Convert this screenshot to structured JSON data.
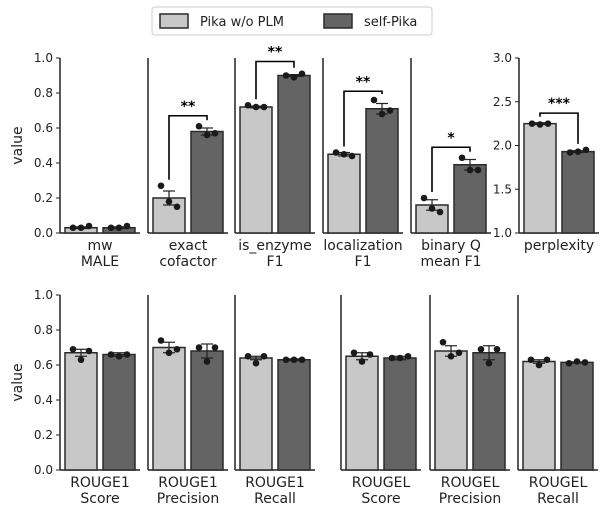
{
  "chart_data": {
    "type": "bar",
    "legend": {
      "placement": "top-center",
      "items": [
        {
          "name": "Pika w/o PLM",
          "color": "#c8c8c8"
        },
        {
          "name": "self-Pika",
          "color": "#646464"
        }
      ]
    },
    "colors": {
      "base": "#c8c8c8",
      "self": "#646464",
      "edge": "#2a2a2a",
      "point": "#1a1a1a"
    },
    "ylabel": "value",
    "top_panels": [
      {
        "label": [
          "mw",
          "MALE"
        ],
        "ylim": [
          0,
          1.0
        ],
        "yticks": [
          "0.0",
          "0.2",
          "0.4",
          "0.6",
          "0.8",
          "1.0"
        ],
        "ytick_values": [
          0,
          0.2,
          0.4,
          0.6,
          0.8,
          1.0
        ],
        "show_ylabel": true,
        "values": [
          0.03,
          0.03
        ],
        "errors": [
          0.005,
          0.005
        ],
        "points": [
          [
            0.03,
            0.03,
            0.04
          ],
          [
            0.03,
            0.03,
            0.04
          ]
        ],
        "sig": ""
      },
      {
        "label": [
          "exact",
          "cofactor"
        ],
        "ylim": [
          0,
          1.0
        ],
        "yticks": [],
        "ytick_values": [],
        "values": [
          0.2,
          0.58
        ],
        "errors": [
          0.04,
          0.02
        ],
        "points": [
          [
            0.27,
            0.18,
            0.15
          ],
          [
            0.61,
            0.56,
            0.57
          ]
        ],
        "sig": "**",
        "sig_y": 0.67
      },
      {
        "label": [
          "is_enzyme",
          "F1"
        ],
        "ylim": [
          0,
          1.0
        ],
        "yticks": [],
        "ytick_values": [],
        "values": [
          0.72,
          0.9
        ],
        "errors": [
          0.005,
          0.005
        ],
        "points": [
          [
            0.73,
            0.72,
            0.72
          ],
          [
            0.9,
            0.89,
            0.91
          ]
        ],
        "sig": "**",
        "sig_y": 0.98
      },
      {
        "label": [
          "localization",
          "F1"
        ],
        "ylim": [
          0,
          1.0
        ],
        "yticks": [],
        "ytick_values": [],
        "values": [
          0.45,
          0.71
        ],
        "errors": [
          0.01,
          0.03
        ],
        "points": [
          [
            0.46,
            0.45,
            0.44
          ],
          [
            0.76,
            0.68,
            0.7
          ]
        ],
        "sig": "**",
        "sig_y": 0.81
      },
      {
        "label": [
          "binary Q",
          "mean F1"
        ],
        "ylim": [
          0,
          1.0
        ],
        "yticks": [],
        "ytick_values": [],
        "values": [
          0.16,
          0.39
        ],
        "errors": [
          0.03,
          0.03
        ],
        "points": [
          [
            0.2,
            0.14,
            0.12
          ],
          [
            0.43,
            0.36,
            0.36
          ]
        ],
        "sig": "*",
        "sig_y": 0.49
      },
      {
        "label": [
          "perplexity",
          ""
        ],
        "ylim": [
          1.0,
          3.0
        ],
        "yticks": [
          "1.0",
          "1.5",
          "2.0",
          "2.5",
          "3.0"
        ],
        "ytick_values": [
          1.0,
          1.5,
          2.0,
          2.5,
          3.0
        ],
        "values": [
          2.25,
          1.93
        ],
        "errors": [
          0.01,
          0.01
        ],
        "points": [
          [
            2.25,
            2.24,
            2.25
          ],
          [
            1.92,
            1.93,
            1.95
          ]
        ],
        "sig": "***",
        "sig_y": 2.37
      }
    ],
    "bottom_panels": [
      {
        "label": [
          "ROUGE1",
          "Score"
        ],
        "ylim": [
          0,
          1.0
        ],
        "yticks": [
          "0.0",
          "0.2",
          "0.4",
          "0.6",
          "0.8",
          "1.0"
        ],
        "ytick_values": [
          0,
          0.2,
          0.4,
          0.6,
          0.8,
          1.0
        ],
        "show_ylabel": true,
        "values": [
          0.67,
          0.66
        ],
        "errors": [
          0.02,
          0.01
        ],
        "points": [
          [
            0.69,
            0.63,
            0.68
          ],
          [
            0.66,
            0.65,
            0.66
          ]
        ]
      },
      {
        "label": [
          "ROUGE1",
          "Precision"
        ],
        "ylim": [
          0,
          1.0
        ],
        "yticks": [],
        "ytick_values": [],
        "values": [
          0.7,
          0.68
        ],
        "errors": [
          0.03,
          0.04
        ],
        "points": [
          [
            0.74,
            0.67,
            0.69
          ],
          [
            0.7,
            0.62,
            0.7
          ]
        ]
      },
      {
        "label": [
          "ROUGE1",
          "Recall"
        ],
        "ylim": [
          0,
          1.0
        ],
        "yticks": [],
        "ytick_values": [],
        "values": [
          0.64,
          0.63
        ],
        "errors": [
          0.01,
          0.005
        ],
        "points": [
          [
            0.65,
            0.61,
            0.65
          ],
          [
            0.63,
            0.63,
            0.63
          ]
        ]
      },
      {
        "label": [
          "ROUGEL",
          "Score"
        ],
        "ylim": [
          0,
          1.0
        ],
        "yticks": [],
        "ytick_values": [],
        "values": [
          0.65,
          0.64
        ],
        "errors": [
          0.02,
          0.01
        ],
        "points": [
          [
            0.67,
            0.62,
            0.66
          ],
          [
            0.64,
            0.64,
            0.65
          ]
        ]
      },
      {
        "label": [
          "ROUGEL",
          "Precision"
        ],
        "ylim": [
          0,
          1.0
        ],
        "yticks": [],
        "ytick_values": [],
        "values": [
          0.68,
          0.67
        ],
        "errors": [
          0.03,
          0.04
        ],
        "points": [
          [
            0.73,
            0.65,
            0.67
          ],
          [
            0.69,
            0.61,
            0.69
          ]
        ]
      },
      {
        "label": [
          "ROUGEL",
          "Recall"
        ],
        "ylim": [
          0,
          1.0
        ],
        "yticks": [],
        "ytick_values": [],
        "values": [
          0.62,
          0.615
        ],
        "errors": [
          0.01,
          0.003
        ],
        "points": [
          [
            0.63,
            0.6,
            0.63
          ],
          [
            0.61,
            0.62,
            0.615
          ]
        ]
      }
    ]
  }
}
